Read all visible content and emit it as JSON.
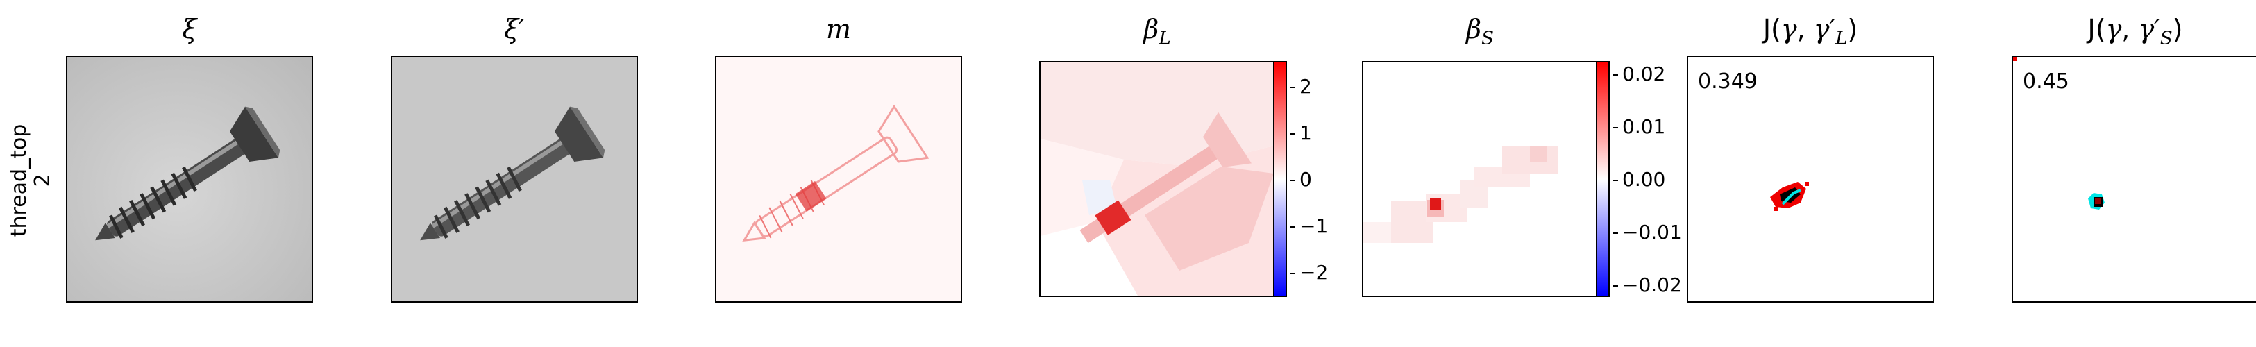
{
  "row_label": "thread_top\n2",
  "panels": [
    {
      "title": "ξ"
    },
    {
      "title": "ξ′"
    },
    {
      "title": "m"
    },
    {
      "title": "βL"
    },
    {
      "title": "βS"
    },
    {
      "title": "J(γ, γ′L)",
      "score": "0.349"
    },
    {
      "title": "J(γ, γ′S)",
      "score": "0.45"
    }
  ],
  "colorbar_L": {
    "ticks": [
      "2",
      "1",
      "0",
      "−1",
      "−2"
    ]
  },
  "colorbar_S": {
    "ticks": [
      "0.02",
      "0.01",
      "0.00",
      "−0.01",
      "−0.02"
    ]
  },
  "colors": {
    "red": "#ff0000",
    "blue": "#0000ff",
    "cyan": "#00ffff"
  }
}
